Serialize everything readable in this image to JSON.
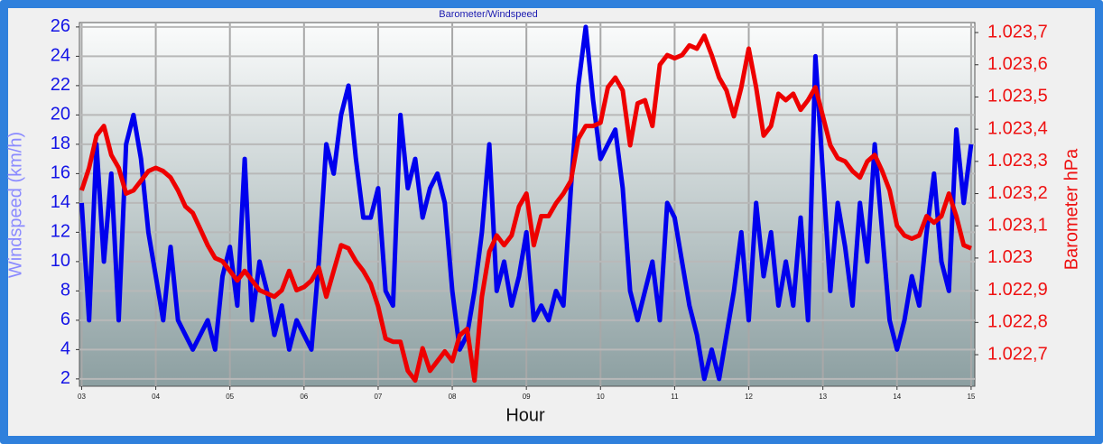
{
  "chart_data": {
    "type": "line",
    "title": "Barometer/Windspeed",
    "x_label": "Hour",
    "y_label": "Windspeed (km/h)",
    "y2_label": "Barometer hPa",
    "grid": true,
    "xlim": [
      2.97,
      15.05
    ],
    "xticks": [
      {
        "value": 3,
        "label": "03"
      },
      {
        "value": 4,
        "label": "04"
      },
      {
        "value": 5,
        "label": "05"
      },
      {
        "value": 6,
        "label": "06"
      },
      {
        "value": 7,
        "label": "07"
      },
      {
        "value": 8,
        "label": "08"
      },
      {
        "value": 9,
        "label": "09"
      },
      {
        "value": 10,
        "label": "10"
      },
      {
        "value": 11,
        "label": "11"
      },
      {
        "value": 12,
        "label": "12"
      },
      {
        "value": 13,
        "label": "13"
      },
      {
        "value": 14,
        "label": "14"
      },
      {
        "value": 15,
        "label": "15"
      }
    ],
    "ylim": [
      1.5,
      26.3
    ],
    "yticks": [
      2,
      4,
      6,
      8,
      10,
      12,
      14,
      16,
      18,
      20,
      22,
      24,
      26
    ],
    "y2lim": [
      1022.602,
      1023.731
    ],
    "y2ticks": [
      {
        "value": 1023.7,
        "label": "1.023,7"
      },
      {
        "value": 1023.6,
        "label": "1.023,6"
      },
      {
        "value": 1023.5,
        "label": "1.023,5"
      },
      {
        "value": 1023.4,
        "label": "1.023,4"
      },
      {
        "value": 1023.3,
        "label": "1.023,3"
      },
      {
        "value": 1023.2,
        "label": "1.023,2"
      },
      {
        "value": 1023.1,
        "label": "1.023,1"
      },
      {
        "value": 1023,
        "label": "1.023"
      },
      {
        "value": 1022.9,
        "label": "1.022,9"
      },
      {
        "value": 1022.8,
        "label": "1.022,8"
      },
      {
        "value": 1022.7,
        "label": "1.022,7"
      }
    ],
    "x": [
      3.0,
      3.1,
      3.2,
      3.3,
      3.4,
      3.5,
      3.6,
      3.7,
      3.8,
      3.9,
      4.0,
      4.1,
      4.2,
      4.3,
      4.4,
      4.5,
      4.6,
      4.7,
      4.8,
      4.9,
      5.0,
      5.1,
      5.2,
      5.3,
      5.4,
      5.5,
      5.6,
      5.7,
      5.8,
      5.9,
      6.0,
      6.1,
      6.2,
      6.3,
      6.4,
      6.5,
      6.6,
      6.7,
      6.8,
      6.9,
      7.0,
      7.1,
      7.2,
      7.3,
      7.4,
      7.5,
      7.6,
      7.7,
      7.8,
      7.9,
      8.0,
      8.1,
      8.2,
      8.3,
      8.4,
      8.5,
      8.6,
      8.7,
      8.8,
      8.9,
      9.0,
      9.1,
      9.2,
      9.3,
      9.4,
      9.5,
      9.6,
      9.7,
      9.8,
      9.9,
      10.0,
      10.1,
      10.2,
      10.3,
      10.4,
      10.5,
      10.6,
      10.7,
      10.8,
      10.9,
      11.0,
      11.1,
      11.2,
      11.3,
      11.4,
      11.5,
      11.6,
      11.7,
      11.8,
      11.9,
      12.0,
      12.1,
      12.2,
      12.3,
      12.4,
      12.5,
      12.6,
      12.7,
      12.8,
      12.9,
      13.0,
      13.1,
      13.2,
      13.3,
      13.4,
      13.5,
      13.6,
      13.7,
      13.8,
      13.9,
      14.0,
      14.1,
      14.2,
      14.3,
      14.4,
      14.5,
      14.6,
      14.7,
      14.8,
      14.9,
      15.0
    ],
    "series": [
      {
        "name": "Windspeed",
        "color": "#0000ee",
        "values": [
          14,
          6,
          18,
          10,
          16,
          6,
          18,
          20,
          17,
          12,
          9,
          6,
          11,
          6,
          5,
          4,
          5,
          6,
          4,
          9,
          11,
          7,
          17,
          6,
          10,
          8,
          5,
          7,
          4,
          6,
          5,
          4,
          10,
          18,
          16,
          20,
          22,
          17,
          13,
          13,
          15,
          8,
          7,
          20,
          15,
          17,
          13,
          15,
          16,
          14,
          8,
          4,
          5,
          8,
          12,
          18,
          8,
          10,
          7,
          9,
          12,
          6,
          7,
          6,
          8,
          7,
          15,
          22,
          26,
          21,
          17,
          18,
          19,
          15,
          8,
          6,
          8,
          10,
          6,
          14,
          13,
          10,
          7,
          5,
          2,
          4,
          2,
          5,
          8,
          12,
          6,
          14,
          9,
          12,
          7,
          10,
          7,
          13,
          6,
          24,
          16,
          8,
          14,
          11,
          7,
          14,
          10,
          18,
          12,
          6,
          4,
          6,
          9,
          7,
          12,
          16,
          10,
          8,
          19,
          14,
          18
        ]
      },
      {
        "name": "Barometer",
        "color": "#ee0000",
        "axis": "y2",
        "values": [
          1023.21,
          1023.28,
          1023.38,
          1023.41,
          1023.32,
          1023.28,
          1023.2,
          1023.21,
          1023.24,
          1023.27,
          1023.28,
          1023.27,
          1023.25,
          1023.21,
          1023.16,
          1023.14,
          1023.09,
          1023.04,
          1023.0,
          1022.99,
          1022.96,
          1022.93,
          1022.96,
          1022.93,
          1022.9,
          1022.89,
          1022.88,
          1022.9,
          1022.96,
          1022.9,
          1022.91,
          1022.93,
          1022.97,
          1022.88,
          1022.96,
          1023.04,
          1023.03,
          1022.99,
          1022.96,
          1022.92,
          1022.85,
          1022.75,
          1022.74,
          1022.74,
          1022.65,
          1022.62,
          1022.72,
          1022.65,
          1022.68,
          1022.71,
          1022.68,
          1022.76,
          1022.78,
          1022.62,
          1022.88,
          1023.02,
          1023.07,
          1023.04,
          1023.07,
          1023.16,
          1023.2,
          1023.04,
          1023.13,
          1023.13,
          1023.17,
          1023.2,
          1023.24,
          1023.37,
          1023.41,
          1023.41,
          1023.42,
          1023.53,
          1023.56,
          1023.52,
          1023.35,
          1023.48,
          1023.49,
          1023.41,
          1023.6,
          1023.63,
          1023.62,
          1023.63,
          1023.66,
          1023.65,
          1023.69,
          1023.63,
          1023.56,
          1023.52,
          1023.44,
          1023.53,
          1023.65,
          1023.53,
          1023.38,
          1023.41,
          1023.51,
          1023.49,
          1023.51,
          1023.46,
          1023.49,
          1023.53,
          1023.44,
          1023.35,
          1023.31,
          1023.3,
          1023.27,
          1023.25,
          1023.3,
          1023.32,
          1023.27,
          1023.21,
          1023.1,
          1023.07,
          1023.06,
          1023.07,
          1023.13,
          1023.11,
          1023.13,
          1023.2,
          1023.13,
          1023.04,
          1023.03
        ]
      }
    ]
  }
}
